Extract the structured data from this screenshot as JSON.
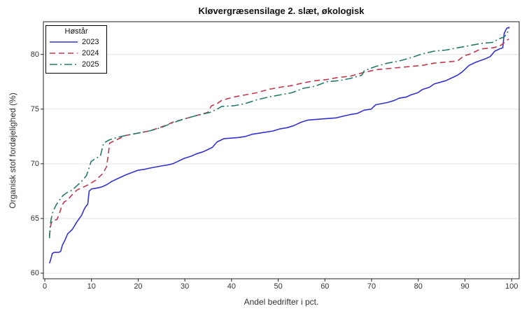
{
  "chart_data": {
    "type": "line",
    "title": "Kløvergræsensilage 2. slæt, økologisk",
    "xlabel": "Andel bedrifter i pct.",
    "ylabel": "Organisk stof fordøjelighed (%)",
    "xlim": [
      0,
      100
    ],
    "ylim": [
      59.5,
      83
    ],
    "x_ticks": [
      0,
      10,
      20,
      30,
      40,
      50,
      60,
      70,
      80,
      90,
      100
    ],
    "y_ticks": [
      60,
      65,
      70,
      75,
      80
    ],
    "grid": "horizontal-only",
    "gridline_color": "#e9e9e9",
    "border_color": "#222222",
    "legend_title": "Høstår",
    "legend_position": "top-left-inside",
    "series": [
      {
        "name": "2023",
        "color": "#3333cb",
        "dash": "solid",
        "points": [
          [
            1,
            60.9
          ],
          [
            1.3,
            61.3
          ],
          [
            1.6,
            61.8
          ],
          [
            2,
            61.9
          ],
          [
            3,
            61.9
          ],
          [
            3.4,
            62.0
          ],
          [
            3.8,
            62.6
          ],
          [
            4.3,
            63.0
          ],
          [
            4.9,
            63.6
          ],
          [
            5.9,
            64.0
          ],
          [
            6.9,
            64.7
          ],
          [
            7.9,
            65.3
          ],
          [
            8.4,
            65.8
          ],
          [
            8.8,
            66.1
          ],
          [
            9.2,
            66.3
          ],
          [
            9.5,
            67.5
          ],
          [
            10,
            67.7
          ],
          [
            11.4,
            67.8
          ],
          [
            12.3,
            67.9
          ],
          [
            13.3,
            68.1
          ],
          [
            14.4,
            68.4
          ],
          [
            15.9,
            68.7
          ],
          [
            17.4,
            69.0
          ],
          [
            19.9,
            69.4
          ],
          [
            21.4,
            69.5
          ],
          [
            22.4,
            69.6
          ],
          [
            24.9,
            69.8
          ],
          [
            26.4,
            69.9
          ],
          [
            27.4,
            70.0
          ],
          [
            28.4,
            70.2
          ],
          [
            29.9,
            70.5
          ],
          [
            31.4,
            70.7
          ],
          [
            32.4,
            70.9
          ],
          [
            33.9,
            71.1
          ],
          [
            34.9,
            71.3
          ],
          [
            35.9,
            71.5
          ],
          [
            36.9,
            72.0
          ],
          [
            38.4,
            72.3
          ],
          [
            41.4,
            72.4
          ],
          [
            43,
            72.5
          ],
          [
            44.4,
            72.7
          ],
          [
            46,
            72.8
          ],
          [
            47.4,
            72.9
          ],
          [
            48.9,
            73.0
          ],
          [
            50.4,
            73.2
          ],
          [
            51.9,
            73.3
          ],
          [
            53.4,
            73.5
          ],
          [
            54.9,
            73.8
          ],
          [
            56.4,
            74.0
          ],
          [
            59.4,
            74.1
          ],
          [
            62.4,
            74.2
          ],
          [
            63.9,
            74.35
          ],
          [
            65.4,
            74.5
          ],
          [
            66.9,
            74.6
          ],
          [
            68.4,
            74.9
          ],
          [
            69.9,
            75.0
          ],
          [
            70.9,
            75.4
          ],
          [
            73.4,
            75.6
          ],
          [
            74.9,
            75.8
          ],
          [
            75.9,
            76.0
          ],
          [
            77.4,
            76.1
          ],
          [
            78.4,
            76.3
          ],
          [
            79.9,
            76.5
          ],
          [
            80.9,
            76.8
          ],
          [
            82.4,
            77.0
          ],
          [
            83.4,
            77.3
          ],
          [
            85.9,
            77.6
          ],
          [
            87.4,
            77.9
          ],
          [
            88.4,
            78.1
          ],
          [
            89.4,
            78.4
          ],
          [
            90.4,
            78.8
          ],
          [
            90.9,
            79.0
          ],
          [
            92.4,
            79.3
          ],
          [
            94.4,
            79.6
          ],
          [
            95.4,
            79.8
          ],
          [
            96.4,
            80.3
          ],
          [
            97.4,
            80.5
          ],
          [
            98.1,
            80.6
          ],
          [
            98.4,
            81.9
          ],
          [
            98.7,
            82.2
          ],
          [
            99,
            82.4
          ],
          [
            99.5,
            82.5
          ]
        ]
      },
      {
        "name": "2024",
        "color": "#bd3a4c",
        "dash": "dash",
        "points": [
          [
            1,
            63.4
          ],
          [
            1.2,
            64.2
          ],
          [
            1.4,
            64.6
          ],
          [
            1.7,
            64.8
          ],
          [
            2.6,
            64.9
          ],
          [
            3.1,
            65.4
          ],
          [
            3.6,
            66.1
          ],
          [
            4.1,
            66.5
          ],
          [
            4.9,
            66.7
          ],
          [
            5.9,
            67.2
          ],
          [
            6.9,
            67.6
          ],
          [
            7.9,
            67.8
          ],
          [
            9.4,
            68.1
          ],
          [
            10.9,
            68.5
          ],
          [
            12.4,
            69.1
          ],
          [
            13.2,
            69.7
          ],
          [
            13.6,
            70.8
          ],
          [
            13.9,
            71.9
          ],
          [
            14.9,
            72.1
          ],
          [
            16.4,
            72.4
          ],
          [
            17.4,
            72.6
          ],
          [
            19.9,
            72.8
          ],
          [
            22.4,
            73.0
          ],
          [
            24.9,
            73.35
          ],
          [
            26.4,
            73.6
          ],
          [
            27.4,
            73.8
          ],
          [
            29.9,
            74.1
          ],
          [
            32.4,
            74.4
          ],
          [
            34.9,
            74.7
          ],
          [
            35.7,
            75.3
          ],
          [
            36.9,
            75.5
          ],
          [
            37.9,
            75.8
          ],
          [
            40.4,
            76.1
          ],
          [
            42.9,
            76.3
          ],
          [
            45.4,
            76.5
          ],
          [
            47.9,
            76.8
          ],
          [
            50.4,
            77.0
          ],
          [
            52.9,
            77.15
          ],
          [
            55.4,
            77.4
          ],
          [
            57.9,
            77.6
          ],
          [
            60.4,
            77.7
          ],
          [
            62.9,
            77.9
          ],
          [
            65.4,
            78.0
          ],
          [
            67.9,
            78.3
          ],
          [
            70.9,
            78.6
          ],
          [
            73.4,
            78.7
          ],
          [
            75.9,
            78.8
          ],
          [
            78.4,
            78.9
          ],
          [
            80.9,
            79.0
          ],
          [
            83.4,
            79.2
          ],
          [
            85.9,
            79.3
          ],
          [
            88.4,
            79.4
          ],
          [
            89.9,
            79.9
          ],
          [
            90.9,
            80.0
          ],
          [
            92.4,
            80.3
          ],
          [
            93.4,
            80.5
          ],
          [
            95.9,
            80.6
          ],
          [
            97.4,
            80.75
          ],
          [
            98.2,
            81.0
          ],
          [
            99,
            81.3
          ],
          [
            99.4,
            81.4
          ]
        ]
      },
      {
        "name": "2025",
        "color": "#28786c",
        "dash": "dash-dot",
        "points": [
          [
            1,
            63.2
          ],
          [
            1.2,
            64.5
          ],
          [
            1.4,
            65.0
          ],
          [
            1.8,
            65.7
          ],
          [
            2.4,
            66.2
          ],
          [
            3,
            66.6
          ],
          [
            3.9,
            67.1
          ],
          [
            4.9,
            67.4
          ],
          [
            5.9,
            67.6
          ],
          [
            6.9,
            68.0
          ],
          [
            7.9,
            68.4
          ],
          [
            8.9,
            68.9
          ],
          [
            9.4,
            69.5
          ],
          [
            9.9,
            70.2
          ],
          [
            10.9,
            70.5
          ],
          [
            11.9,
            70.7
          ],
          [
            12.6,
            71.9
          ],
          [
            13.9,
            72.2
          ],
          [
            15.4,
            72.4
          ],
          [
            17.4,
            72.6
          ],
          [
            19.9,
            72.8
          ],
          [
            22.4,
            73.0
          ],
          [
            24.9,
            73.3
          ],
          [
            27.4,
            73.75
          ],
          [
            29.9,
            74.1
          ],
          [
            32.4,
            74.4
          ],
          [
            34.9,
            74.65
          ],
          [
            35.4,
            74.7
          ],
          [
            36.9,
            75.0
          ],
          [
            37.9,
            75.25
          ],
          [
            40.4,
            75.3
          ],
          [
            42.9,
            75.5
          ],
          [
            45.4,
            75.85
          ],
          [
            47.9,
            76.1
          ],
          [
            50.4,
            76.3
          ],
          [
            52.9,
            76.5
          ],
          [
            55.4,
            76.9
          ],
          [
            57.9,
            77.1
          ],
          [
            60.4,
            77.5
          ],
          [
            62.9,
            77.6
          ],
          [
            65.4,
            77.8
          ],
          [
            67.9,
            78.1
          ],
          [
            68.4,
            78.5
          ],
          [
            70.9,
            78.9
          ],
          [
            73.4,
            79.2
          ],
          [
            75.9,
            79.4
          ],
          [
            78.4,
            79.7
          ],
          [
            80.9,
            80.05
          ],
          [
            83.4,
            80.3
          ],
          [
            85.9,
            80.4
          ],
          [
            88.4,
            80.6
          ],
          [
            90.9,
            80.8
          ],
          [
            93.4,
            81.0
          ],
          [
            95.9,
            81.1
          ],
          [
            97.4,
            81.45
          ],
          [
            98.4,
            81.6
          ],
          [
            99,
            81.9
          ],
          [
            99.5,
            82.5
          ]
        ]
      }
    ]
  }
}
